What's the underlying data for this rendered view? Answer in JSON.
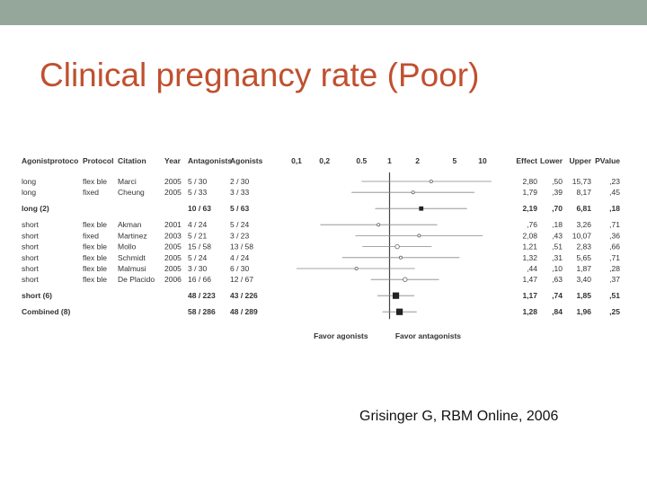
{
  "colors": {
    "top_bar": "#95a79b",
    "title": "#c0502f",
    "text": "#333333",
    "axis": "#444444",
    "ref_line": "#aaaaaa",
    "ci_line": "#888888",
    "marker": "#222222"
  },
  "slide": {
    "title": "Clinical pregnancy rate (Poor)",
    "citation": "Grisinger G, RBM Online, 2006"
  },
  "chart_data": {
    "type": "forest",
    "x_scale": "log",
    "xlim": [
      0.1,
      10
    ],
    "columns": [
      "Agonistprotoco",
      "Protocol",
      "Citation",
      "Year",
      "Antagonists",
      "Agonists"
    ],
    "stat_headers": [
      "Effect",
      "Lower",
      "Upper",
      "PValue"
    ],
    "ticks": [
      {
        "value": 0.1,
        "label": "0,1"
      },
      {
        "value": 0.2,
        "label": "0,2"
      },
      {
        "value": 0.5,
        "label": "0.5"
      },
      {
        "value": 1,
        "label": "1"
      },
      {
        "value": 2,
        "label": "2"
      },
      {
        "value": 5,
        "label": "5"
      },
      {
        "value": 10,
        "label": "10"
      }
    ],
    "favor_left": "Favor agonists",
    "favor_right": "Favor antagonists",
    "rows": [
      {
        "kind": "study",
        "agonist": "long",
        "protocol": "flex ble",
        "citation": "Marci",
        "year": "2005",
        "antagonists": "5 / 30",
        "agonists": "2 / 30",
        "effect": 2.8,
        "lower": 0.5,
        "upper": 15.73,
        "effect_label": "2,80",
        "lower_label": ",50",
        "upper_label": "15,73",
        "p_label": ",23",
        "weight": 1
      },
      {
        "kind": "study",
        "agonist": "long",
        "protocol": "fixed",
        "citation": "Cheung",
        "year": "2005",
        "antagonists": "5 / 33",
        "agonists": "3 / 33",
        "effect": 1.79,
        "lower": 0.39,
        "upper": 8.17,
        "effect_label": "1,79",
        "lower_label": ",39",
        "upper_label": "8,17",
        "p_label": ",45",
        "weight": 1
      },
      {
        "kind": "gap"
      },
      {
        "kind": "pooled",
        "label": "long (2)",
        "antagonists": "10 / 63",
        "agonists": "5 / 63",
        "effect": 2.19,
        "lower": 0.7,
        "upper": 6.81,
        "effect_label": "2,19",
        "lower_label": ",70",
        "upper_label": "6,81",
        "p_label": ",18",
        "weight": 2
      },
      {
        "kind": "gap"
      },
      {
        "kind": "study",
        "agonist": "short",
        "protocol": "flex ble",
        "citation": "Akman",
        "year": "2001",
        "antagonists": "4 / 24",
        "agonists": "5 / 24",
        "effect": 0.76,
        "lower": 0.18,
        "upper": 3.26,
        "effect_label": ",76",
        "lower_label": ",18",
        "upper_label": "3,26",
        "p_label": ",71",
        "weight": 1
      },
      {
        "kind": "study",
        "agonist": "short",
        "protocol": "fixed",
        "citation": "Martinez",
        "year": "2003",
        "antagonists": "5 / 21",
        "agonists": "3 / 23",
        "effect": 2.08,
        "lower": 0.43,
        "upper": 10.07,
        "effect_label": "2,08",
        "lower_label": ",43",
        "upper_label": "10,07",
        "p_label": ",36",
        "weight": 1
      },
      {
        "kind": "study",
        "agonist": "short",
        "protocol": "flex ble",
        "citation": "Mollo",
        "year": "2005",
        "antagonists": "15 / 58",
        "agonists": "13 / 58",
        "effect": 1.21,
        "lower": 0.51,
        "upper": 2.83,
        "effect_label": "1,21",
        "lower_label": ",51",
        "upper_label": "2,83",
        "p_label": ",66",
        "weight": 1.4
      },
      {
        "kind": "study",
        "agonist": "short",
        "protocol": "flex ble",
        "citation": "Schmidt",
        "year": "2005",
        "antagonists": "5 / 24",
        "agonists": "4 / 24",
        "effect": 1.32,
        "lower": 0.31,
        "upper": 5.65,
        "effect_label": "1,32",
        "lower_label": ",31",
        "upper_label": "5,65",
        "p_label": ",71",
        "weight": 1
      },
      {
        "kind": "study",
        "agonist": "short",
        "protocol": "flex ble",
        "citation": "Malmusi",
        "year": "2005",
        "antagonists": "3 / 30",
        "agonists": "6 / 30",
        "effect": 0.44,
        "lower": 0.1,
        "upper": 1.87,
        "effect_label": ",44",
        "lower_label": ",10",
        "upper_label": "1,87",
        "p_label": ",28",
        "weight": 1
      },
      {
        "kind": "study",
        "agonist": "short",
        "protocol": "flex ble",
        "citation": "De Placido",
        "year": "2006",
        "antagonists": "16 / 66",
        "agonists": "12 / 67",
        "effect": 1.47,
        "lower": 0.63,
        "upper": 3.4,
        "effect_label": "1,47",
        "lower_label": ",63",
        "upper_label": "3,40",
        "p_label": ",37",
        "weight": 1.4
      },
      {
        "kind": "gap"
      },
      {
        "kind": "pooled",
        "label": "short (6)",
        "antagonists": "48 / 223",
        "agonists": "43 / 226",
        "effect": 1.17,
        "lower": 0.74,
        "upper": 1.85,
        "effect_label": "1,17",
        "lower_label": ",74",
        "upper_label": "1,85",
        "p_label": ",51",
        "weight": 3
      },
      {
        "kind": "gap"
      },
      {
        "kind": "pooled",
        "label": "Combined (8)",
        "antagonists": "58 / 286",
        "agonists": "48 / 289",
        "effect": 1.28,
        "lower": 0.84,
        "upper": 1.96,
        "effect_label": "1,28",
        "lower_label": ",84",
        "upper_label": "1,96",
        "p_label": ",25",
        "weight": 3
      }
    ]
  }
}
